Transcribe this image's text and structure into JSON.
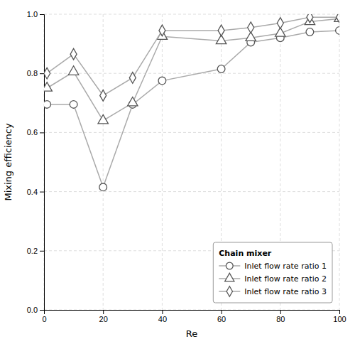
{
  "chart_data": {
    "type": "line",
    "xlabel": "Re",
    "ylabel": "Mixing efficiency",
    "x": [
      1,
      10,
      20,
      30,
      40,
      60,
      70,
      80,
      90,
      100
    ],
    "series": [
      {
        "name": "Inlet flow rate ratio 1",
        "color": "#aaaaaa",
        "marker": "circle",
        "values": [
          0.695,
          0.695,
          0.415,
          0.695,
          0.775,
          0.815,
          0.905,
          0.92,
          0.94,
          0.945
        ]
      },
      {
        "name": "Inlet flow rate ratio 2",
        "color": "#aaaaaa",
        "marker": "triangle",
        "values": [
          0.75,
          0.805,
          0.64,
          0.7,
          0.925,
          0.91,
          0.92,
          0.935,
          0.975,
          0.985
        ]
      },
      {
        "name": "Inlet flow rate ratio 3",
        "color": "#aaaaaa",
        "marker": "diamond",
        "values": [
          0.8,
          0.865,
          0.725,
          0.785,
          0.945,
          0.945,
          0.955,
          0.97,
          0.99,
          0.99
        ]
      }
    ],
    "legend_title": "Chain mixer",
    "xlim": [
      0,
      100
    ],
    "ylim": [
      0,
      1.0
    ],
    "xticks": [
      0,
      20,
      40,
      60,
      80,
      100
    ],
    "yticks": [
      {
        "value": 0,
        "label": "0.0"
      },
      0.2,
      0.4,
      0.6,
      0.8,
      {
        "value": 1.0,
        "label": "1.0"
      }
    ],
    "grid": true,
    "legend": "lower right"
  }
}
